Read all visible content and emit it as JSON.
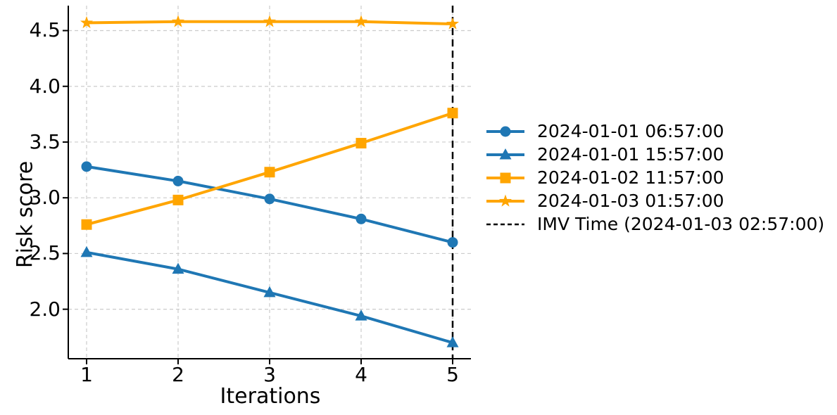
{
  "figure": {
    "background": "#ffffff",
    "text_color": "#000000",
    "grid_color": "#cccccc",
    "spine_color": "#000000"
  },
  "chart_data": {
    "type": "line",
    "title": "",
    "xlabel": "Iterations",
    "ylabel": "Risk score",
    "x": [
      1,
      2,
      3,
      4,
      5
    ],
    "x_ticks": [
      "1",
      "2",
      "3",
      "4",
      "5"
    ],
    "y_ticks": [
      "2.0",
      "2.5",
      "3.0",
      "3.5",
      "4.0",
      "4.5"
    ],
    "y_tick_values": [
      2.0,
      2.5,
      3.0,
      3.5,
      4.0,
      4.5
    ],
    "xlim": [
      0.8,
      5.2
    ],
    "ylim": [
      1.556,
      4.724
    ],
    "grid": true,
    "legend_position": "outside-right",
    "series": [
      {
        "name": "2024-01-01 06:57:00",
        "color": "#1f77b4",
        "marker": "circle",
        "values": [
          3.28,
          3.15,
          2.99,
          2.81,
          2.6
        ]
      },
      {
        "name": "2024-01-01 15:57:00",
        "color": "#1f77b4",
        "marker": "triangle",
        "values": [
          2.51,
          2.36,
          2.15,
          1.94,
          1.7
        ]
      },
      {
        "name": "2024-01-02 11:57:00",
        "color": "#ffa500",
        "marker": "square",
        "values": [
          2.76,
          2.98,
          3.23,
          3.49,
          3.76
        ]
      },
      {
        "name": "2024-01-03 01:57:00",
        "color": "#ffa500",
        "marker": "star",
        "values": [
          4.57,
          4.58,
          4.58,
          4.58,
          4.56
        ]
      }
    ],
    "vline": {
      "x": 5,
      "label": "IMV Time (2024-01-03 02:57:00)",
      "color": "#000000",
      "style": "dashed"
    }
  }
}
